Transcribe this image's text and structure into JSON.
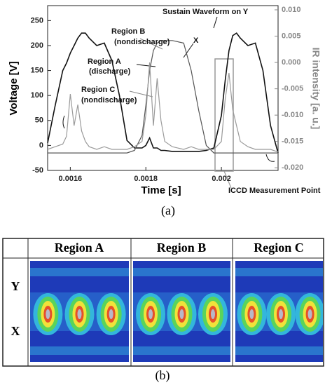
{
  "chart_data": {
    "type": "line",
    "panel_label": "(a)",
    "xlabel": "Time [s]",
    "ylabel": "Voltage [V]",
    "y2label": "IR intensity [a. u.]",
    "x": [
      0.00154,
      0.00156,
      0.00158,
      0.00159,
      0.0016,
      0.00161,
      0.00162,
      0.00163,
      0.00164,
      0.00165,
      0.00167,
      0.00169,
      0.00171,
      0.00173,
      0.00175,
      0.00177,
      0.00179,
      0.0018,
      0.00181,
      0.00182,
      0.00183,
      0.00184,
      0.00185,
      0.00187,
      0.0019,
      0.00192,
      0.00194,
      0.00196,
      0.00198,
      0.002,
      0.00201,
      0.00202,
      0.00203,
      0.00204,
      0.00205,
      0.00207,
      0.00209,
      0.00211,
      0.00213,
      0.00215
    ],
    "series": [
      {
        "color": "#111111",
        "values": [
          5,
          80,
          150,
          165,
          185,
          200,
          215,
          225,
          225,
          215,
          200,
          205,
          170,
          100,
          10,
          -5,
          -5,
          0,
          15,
          -5,
          -5,
          -10,
          -10,
          -12,
          -12,
          -12,
          -12,
          -10,
          -5,
          60,
          130,
          190,
          220,
          225,
          215,
          200,
          205,
          150,
          40,
          -15
        ]
      },
      {
        "color": "#555555",
        "values": [
          -15,
          -15,
          -15,
          -15,
          -15,
          -15,
          -15,
          -15,
          -15,
          -15,
          -15,
          -15,
          -15,
          -15,
          -15,
          -10,
          20,
          80,
          150,
          190,
          205,
          210,
          210,
          210,
          205,
          150,
          70,
          0,
          -15,
          -15,
          -15,
          -15,
          -15,
          -15,
          -15,
          -15,
          -15,
          -15,
          -15,
          -15
        ]
      },
      {
        "color": "#9a9a9a",
        "axis": "y2",
        "values": [
          -0.0165,
          -0.016,
          -0.0155,
          -0.014,
          -0.006,
          -0.012,
          -0.008,
          -0.013,
          -0.015,
          -0.016,
          -0.0165,
          -0.016,
          -0.0165,
          -0.0165,
          -0.0165,
          -0.016,
          -0.015,
          -0.01,
          0.0,
          -0.012,
          -0.003,
          -0.011,
          -0.015,
          -0.016,
          -0.0165,
          -0.016,
          -0.0165,
          -0.0165,
          -0.0165,
          -0.015,
          -0.007,
          -0.002,
          -0.009,
          -0.012,
          -0.015,
          -0.016,
          -0.0165,
          -0.0165,
          -0.0165,
          -0.017
        ]
      }
    ],
    "xlim": [
      0.00154,
      0.00215
    ],
    "xticks": [
      0.0016,
      0.0018,
      0.002
    ],
    "ylim": [
      -50,
      280
    ],
    "yticks": [
      -50,
      0,
      50,
      100,
      150,
      200,
      250
    ],
    "y2lim": [
      -0.0205,
      0.0108
    ],
    "y2ticks": [
      {
        "value": 0.01,
        "label": "0.010"
      },
      0.005,
      {
        "value": 0,
        "label": "0.000"
      },
      -0.005,
      {
        "value": -0.01,
        "label": "-0.010"
      },
      -0.015,
      {
        "value": -0.02,
        "label": "-0.020"
      }
    ],
    "annotations": [
      "Sustain Waveform on Y",
      "X",
      "Region B",
      "(nondischarge)",
      "Region A",
      "(discharge)",
      "Region C",
      "(nondischarge)",
      "ICCD Measurement Point"
    ]
  },
  "figure_b": {
    "label": "(b)",
    "columns": [
      "Region A",
      "Region B",
      "Region C"
    ],
    "rows": [
      "Y",
      "X"
    ]
  }
}
